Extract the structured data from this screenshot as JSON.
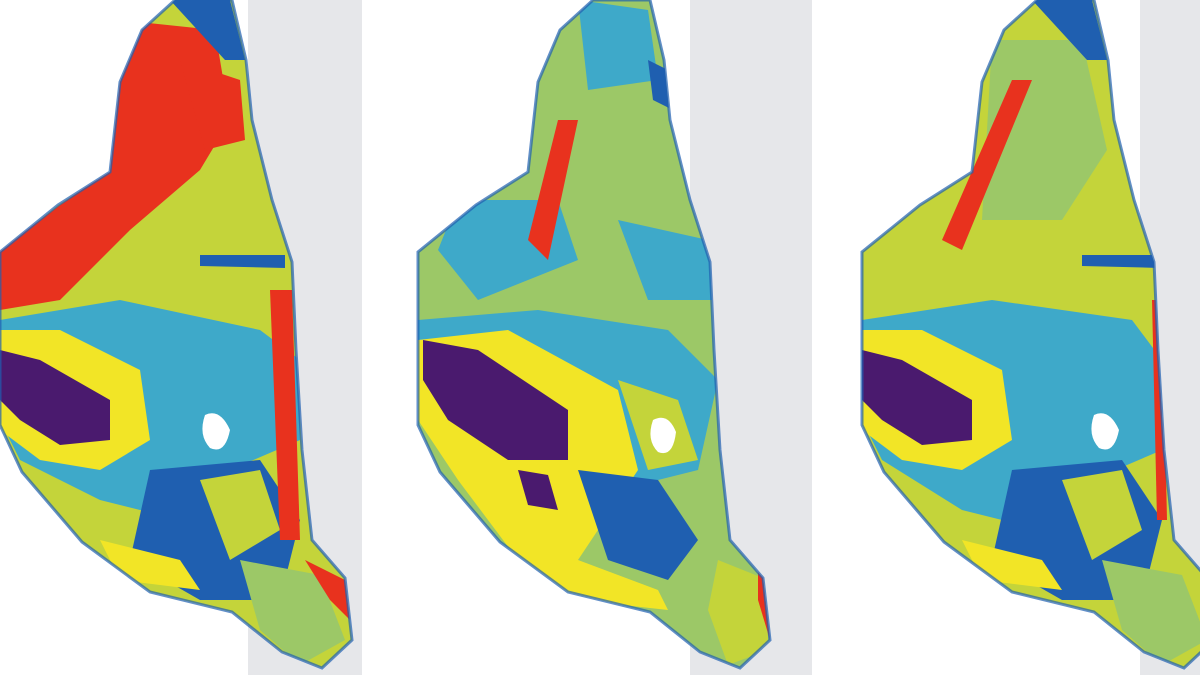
{
  "figure": {
    "panel_count": 3,
    "background": "#ffffff",
    "water_color": "#e6e7ea",
    "classes": {
      "red": "#e8321e",
      "yellow": "#f2e526",
      "yellowgreen": "#c4d43a",
      "green": "#9cc867",
      "teal": "#3ea9c9",
      "blue": "#1f5fb0",
      "purple": "#4a1a6e",
      "hole": "#ffffff"
    }
  }
}
